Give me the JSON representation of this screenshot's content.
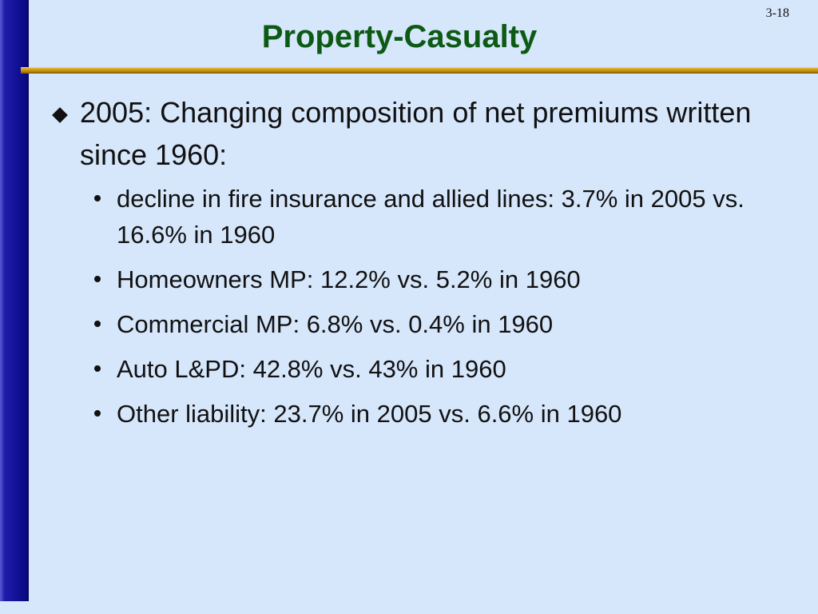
{
  "slide": {
    "number": "3-18",
    "title": "Property-Casualty",
    "main_bullet": "2005: Changing composition of net premiums written since 1960:",
    "sub_bullets": [
      "decline in fire insurance and allied lines:  3.7% in 2005 vs. 16.6% in 1960",
      "Homeowners MP: 12.2% vs. 5.2% in 1960",
      "Commercial MP: 6.8% vs. 0.4% in 1960",
      "Auto L&PD: 42.8% vs. 43% in 1960",
      "Other liability: 23.7% in 2005 vs. 6.6% in 1960"
    ]
  },
  "colors": {
    "background": "#d6e6fb",
    "title": "#0c5a14",
    "left_bar": "#12129a",
    "rule": "#c08a0a"
  }
}
